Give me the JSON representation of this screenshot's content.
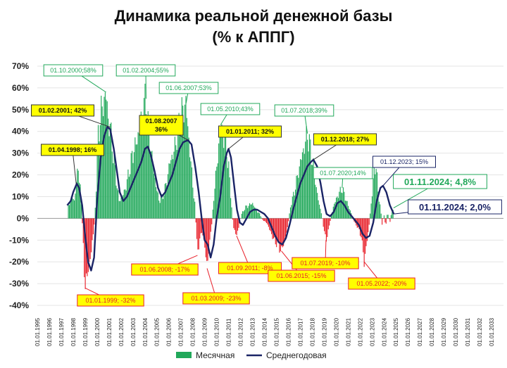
{
  "chart_data": {
    "type": "bar+line",
    "title_line1": "Динамика реальной денежной базы",
    "title_line2": "(% к АППГ)",
    "ylim": [
      -40,
      70
    ],
    "yticks": [
      -40,
      -30,
      -20,
      -10,
      0,
      10,
      20,
      30,
      40,
      50,
      60,
      70
    ],
    "ytick_labels": [
      "-40%",
      "-30%",
      "-20%",
      "-10%",
      "0%",
      "10%",
      "20%",
      "30%",
      "40%",
      "50%",
      "60%",
      "70%"
    ],
    "x_tick_labels": [
      "01.01.1995",
      "01.01.1996",
      "01.01.1997",
      "01.01.1998",
      "01.01.1999",
      "01.01.2000",
      "01.01.2001",
      "01.01.2002",
      "01.01.2003",
      "01.01.2004",
      "01.01.2005",
      "01.01.2006",
      "01.01.2007",
      "01.01.2008",
      "01.01.2009",
      "01.01.2010",
      "01.01.2011",
      "01.01.2012",
      "01.01.2013",
      "01.01.2014",
      "01.01.2015",
      "01.01.2016",
      "01.01.2017",
      "01.01.2018",
      "01.01.2019",
      "01.01.2020",
      "01.01.2021",
      "01.01.2022",
      "01.01.2023",
      "01.01.2024",
      "01.01.2025",
      "01.01.2026",
      "01.01.2027",
      "01.01.2028",
      "01.01.2029",
      "01.01.2030",
      "01.01.2031",
      "01.01.2032",
      "01.01.2033"
    ],
    "series": [
      {
        "name": "Месячная",
        "type": "bar",
        "color": "#21a85a",
        "negative_color": "#e8202a",
        "keypoints": [
          [
            1997.6,
            6
          ],
          [
            1997.9,
            10
          ],
          [
            1998.1,
            8
          ],
          [
            1998.25,
            16
          ],
          [
            1998.45,
            24
          ],
          [
            1998.6,
            14
          ],
          [
            1998.8,
            -6
          ],
          [
            1999.0,
            -32
          ],
          [
            1999.25,
            -24
          ],
          [
            1999.5,
            -16
          ],
          [
            1999.75,
            -4
          ],
          [
            1999.9,
            10
          ],
          [
            2000.1,
            38
          ],
          [
            2000.3,
            48
          ],
          [
            2000.5,
            52
          ],
          [
            2000.75,
            58
          ],
          [
            2000.95,
            44
          ],
          [
            2001.1,
            42
          ],
          [
            2001.35,
            30
          ],
          [
            2001.6,
            18
          ],
          [
            2001.85,
            8
          ],
          [
            2002.1,
            10
          ],
          [
            2002.4,
            14
          ],
          [
            2002.7,
            22
          ],
          [
            2003.0,
            30
          ],
          [
            2003.3,
            35
          ],
          [
            2003.6,
            42
          ],
          [
            2003.85,
            50
          ],
          [
            2004.1,
            55
          ],
          [
            2004.3,
            40
          ],
          [
            2004.6,
            28
          ],
          [
            2004.9,
            16
          ],
          [
            2005.2,
            8
          ],
          [
            2005.5,
            10
          ],
          [
            2005.8,
            16
          ],
          [
            2006.1,
            26
          ],
          [
            2006.4,
            30
          ],
          [
            2006.7,
            38
          ],
          [
            2006.95,
            45
          ],
          [
            2007.2,
            50
          ],
          [
            2007.45,
            53
          ],
          [
            2007.65,
            38
          ],
          [
            2007.85,
            26
          ],
          [
            2008.0,
            16
          ],
          [
            2008.2,
            6
          ],
          [
            2008.4,
            -17
          ],
          [
            2008.6,
            -9
          ],
          [
            2008.8,
            -6
          ],
          [
            2009.0,
            -12
          ],
          [
            2009.2,
            -23
          ],
          [
            2009.35,
            -14
          ],
          [
            2009.55,
            -6
          ],
          [
            2009.8,
            12
          ],
          [
            2010.1,
            28
          ],
          [
            2010.33,
            43
          ],
          [
            2010.55,
            38
          ],
          [
            2010.8,
            34
          ],
          [
            2011.0,
            24
          ],
          [
            2011.2,
            10
          ],
          [
            2011.4,
            -4
          ],
          [
            2011.67,
            -8
          ],
          [
            2011.85,
            -4
          ],
          [
            2012.1,
            2
          ],
          [
            2012.4,
            5
          ],
          [
            2012.7,
            6
          ],
          [
            2013.0,
            7
          ],
          [
            2013.3,
            4
          ],
          [
            2013.6,
            2
          ],
          [
            2013.9,
            -1
          ],
          [
            2014.2,
            -2
          ],
          [
            2014.5,
            -6
          ],
          [
            2014.8,
            -10
          ],
          [
            2015.1,
            -12
          ],
          [
            2015.42,
            -15
          ],
          [
            2015.7,
            -10
          ],
          [
            2015.95,
            -4
          ],
          [
            2016.2,
            6
          ],
          [
            2016.5,
            12
          ],
          [
            2016.8,
            20
          ],
          [
            2017.1,
            28
          ],
          [
            2017.4,
            34
          ],
          [
            2017.6,
            39
          ],
          [
            2017.85,
            32
          ],
          [
            2018.1,
            24
          ],
          [
            2018.35,
            14
          ],
          [
            2018.6,
            6
          ],
          [
            2018.8,
            2
          ],
          [
            2019.0,
            -6
          ],
          [
            2019.15,
            -10
          ],
          [
            2019.35,
            -6
          ],
          [
            2019.55,
            0
          ],
          [
            2019.8,
            6
          ],
          [
            2020.1,
            10
          ],
          [
            2020.3,
            12
          ],
          [
            2020.5,
            14
          ],
          [
            2020.75,
            10
          ],
          [
            2021.0,
            6
          ],
          [
            2021.3,
            2
          ],
          [
            2021.55,
            -2
          ],
          [
            2021.8,
            -4
          ],
          [
            2022.1,
            -8
          ],
          [
            2022.35,
            -20
          ],
          [
            2022.55,
            -12
          ],
          [
            2022.75,
            -4
          ],
          [
            2022.95,
            8
          ],
          [
            2023.15,
            20
          ],
          [
            2023.35,
            26
          ],
          [
            2023.5,
            12
          ],
          [
            2023.7,
            6
          ],
          [
            2023.85,
            -3
          ],
          [
            2024.0,
            2
          ],
          [
            2024.15,
            -4
          ],
          [
            2024.3,
            3
          ],
          [
            2024.5,
            -2
          ],
          [
            2024.65,
            3
          ],
          [
            2024.8,
            4.8
          ]
        ]
      },
      {
        "name": "Среднегодовая",
        "type": "line",
        "color": "#1a2466",
        "points": [
          [
            1997.5,
            6
          ],
          [
            1997.8,
            8
          ],
          [
            1998.0,
            12
          ],
          [
            1998.3,
            16
          ],
          [
            1998.5,
            14
          ],
          [
            1998.75,
            6
          ],
          [
            1999.0,
            -8
          ],
          [
            1999.25,
            -20
          ],
          [
            1999.5,
            -24
          ],
          [
            1999.75,
            -18
          ],
          [
            2000.0,
            8
          ],
          [
            2000.3,
            28
          ],
          [
            2000.6,
            38
          ],
          [
            2000.85,
            42
          ],
          [
            2001.1,
            41
          ],
          [
            2001.4,
            32
          ],
          [
            2001.65,
            22
          ],
          [
            2001.9,
            12
          ],
          [
            2002.2,
            8
          ],
          [
            2002.5,
            10
          ],
          [
            2002.8,
            14
          ],
          [
            2003.1,
            18
          ],
          [
            2003.4,
            22
          ],
          [
            2003.7,
            26
          ],
          [
            2004.0,
            32
          ],
          [
            2004.25,
            33
          ],
          [
            2004.5,
            29
          ],
          [
            2004.8,
            22
          ],
          [
            2005.1,
            14
          ],
          [
            2005.4,
            10
          ],
          [
            2005.7,
            12
          ],
          [
            2006.0,
            16
          ],
          [
            2006.3,
            20
          ],
          [
            2006.6,
            26
          ],
          [
            2006.9,
            32
          ],
          [
            2007.2,
            35
          ],
          [
            2007.6,
            36
          ],
          [
            2007.9,
            34
          ],
          [
            2008.2,
            24
          ],
          [
            2008.5,
            12
          ],
          [
            2008.75,
            0
          ],
          [
            2009.0,
            -10
          ],
          [
            2009.25,
            -12
          ],
          [
            2009.5,
            -18
          ],
          [
            2009.75,
            -12
          ],
          [
            2010.0,
            0
          ],
          [
            2010.3,
            10
          ],
          [
            2010.6,
            24
          ],
          [
            2010.85,
            30
          ],
          [
            2011.0,
            32
          ],
          [
            2011.2,
            28
          ],
          [
            2011.45,
            16
          ],
          [
            2011.7,
            4
          ],
          [
            2011.95,
            -2
          ],
          [
            2012.2,
            -3
          ],
          [
            2012.5,
            0
          ],
          [
            2012.8,
            3
          ],
          [
            2013.1,
            4
          ],
          [
            2013.4,
            4
          ],
          [
            2013.7,
            3
          ],
          [
            2014.0,
            2
          ],
          [
            2014.3,
            0
          ],
          [
            2014.6,
            -4
          ],
          [
            2014.9,
            -8
          ],
          [
            2015.2,
            -11
          ],
          [
            2015.5,
            -12
          ],
          [
            2015.8,
            -9
          ],
          [
            2016.1,
            -3
          ],
          [
            2016.4,
            4
          ],
          [
            2016.7,
            10
          ],
          [
            2017.0,
            16
          ],
          [
            2017.3,
            20
          ],
          [
            2017.6,
            24
          ],
          [
            2017.9,
            26
          ],
          [
            2018.1,
            27
          ],
          [
            2018.4,
            24
          ],
          [
            2018.7,
            16
          ],
          [
            2018.95,
            8
          ],
          [
            2019.2,
            2
          ],
          [
            2019.5,
            1
          ],
          [
            2019.8,
            3
          ],
          [
            2020.1,
            7
          ],
          [
            2020.4,
            8
          ],
          [
            2020.7,
            6
          ],
          [
            2021.0,
            3
          ],
          [
            2021.3,
            1
          ],
          [
            2021.6,
            -1
          ],
          [
            2021.9,
            -3
          ],
          [
            2022.2,
            -7
          ],
          [
            2022.5,
            -9
          ],
          [
            2022.8,
            -8
          ],
          [
            2023.1,
            -2
          ],
          [
            2023.4,
            8
          ],
          [
            2023.7,
            14
          ],
          [
            2023.92,
            15
          ],
          [
            2024.2,
            12
          ],
          [
            2024.5,
            6
          ],
          [
            2024.83,
            2
          ]
        ]
      }
    ],
    "annotations": [
      {
        "id": "a1",
        "text": "01.10.2000;58%",
        "style": "green",
        "x": 2000.75,
        "y": 58
      },
      {
        "id": "a2",
        "text": "01.02.2004;55%",
        "style": "green",
        "x": 2004.1,
        "y": 55
      },
      {
        "id": "a3",
        "text": "01.06.2007;53%",
        "style": "green",
        "x": 2007.45,
        "y": 53
      },
      {
        "id": "a4",
        "text": "01.05.2010;43%",
        "style": "green",
        "x": 2010.33,
        "y": 43
      },
      {
        "id": "a5",
        "text": "01.07.2018;39%",
        "style": "green",
        "x": 2017.6,
        "y": 39
      },
      {
        "id": "a6",
        "text": "01.07.2020;14%",
        "style": "green",
        "x": 2020.5,
        "y": 14
      },
      {
        "id": "a7",
        "text": "01.02.2001; 42%",
        "style": "yellow",
        "x": 2001.1,
        "y": 42
      },
      {
        "id": "a8",
        "text": "01.04.1998; 16%",
        "style": "yellow",
        "x": 1998.25,
        "y": 16
      },
      {
        "id": "a9",
        "text": "01.08.2007",
        "text2": "36%",
        "style": "yellow",
        "x": 2007.6,
        "y": 36
      },
      {
        "id": "a10",
        "text": "01.01.2011; 32%",
        "style": "yellow",
        "x": 2011.0,
        "y": 32
      },
      {
        "id": "a11",
        "text": "01.12.2018; 27%",
        "style": "yellow",
        "x": 2018.1,
        "y": 27
      },
      {
        "id": "a12",
        "text": "01.12.2023; 15%",
        "style": "navy",
        "x": 2023.92,
        "y": 15
      },
      {
        "id": "a13",
        "text": "01.01.1999; -32%",
        "style": "red",
        "x": 1999.0,
        "y": -32
      },
      {
        "id": "a14",
        "text": "01.06.2008; -17%",
        "style": "red",
        "x": 2008.4,
        "y": -17
      },
      {
        "id": "a15",
        "text": "01.03.2009; -23%",
        "style": "red",
        "x": 2009.2,
        "y": -23
      },
      {
        "id": "a16",
        "text": "01.09.2011; -8%",
        "style": "red",
        "x": 2011.67,
        "y": -8
      },
      {
        "id": "a17",
        "text": "01.06.2015; -15%",
        "style": "red",
        "x": 2015.42,
        "y": -15
      },
      {
        "id": "a18",
        "text": "01.07.2019; -10%",
        "style": "red",
        "x": 2019.15,
        "y": -10
      },
      {
        "id": "a19",
        "text": "01.05.2022; -20%",
        "style": "red",
        "x": 2022.35,
        "y": -20
      },
      {
        "id": "a20",
        "text": "01.11.2024; 4,8%",
        "style": "green-big",
        "x": 2024.8,
        "y": 4.8
      },
      {
        "id": "a21",
        "text": "01.11.2024; 2,0%",
        "style": "navy-big",
        "x": 2024.83,
        "y": 2
      }
    ],
    "legend": {
      "position": "bottom",
      "items": [
        {
          "label": "Месячная",
          "color": "#21a85a",
          "kind": "bar"
        },
        {
          "label": "Среднегодовая",
          "color": "#1a2466",
          "kind": "line"
        }
      ]
    }
  }
}
